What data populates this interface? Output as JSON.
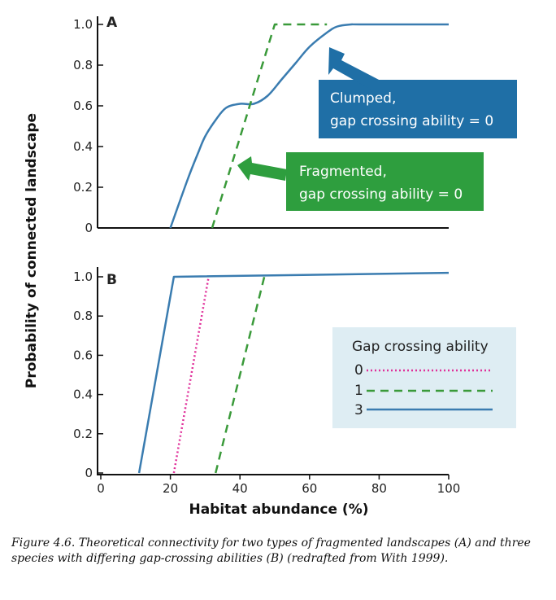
{
  "chart_data": [
    {
      "panel": "A",
      "type": "line",
      "ylabel": "Probability of connected landscape",
      "xlabel": "",
      "xlim": [
        0,
        100
      ],
      "ylim": [
        0,
        1.0
      ],
      "y_ticks": [
        "0",
        "0.2",
        "0.4",
        "0.6",
        "0.8",
        "1.0"
      ],
      "series": [
        {
          "style": "solid",
          "color": "#3a7cb0",
          "x": [
            20,
            25,
            28,
            30,
            33,
            36,
            40,
            44,
            48,
            52,
            56,
            60,
            65,
            68,
            72,
            75,
            100
          ],
          "y": [
            0,
            0.24,
            0.37,
            0.45,
            0.53,
            0.59,
            0.61,
            0.61,
            0.65,
            0.73,
            0.81,
            0.89,
            0.96,
            0.99,
            1.0,
            1.0,
            1.0
          ]
        },
        {
          "style": "dashed",
          "color": "#3a9a3a",
          "x": [
            32,
            50,
            65
          ],
          "y": [
            0,
            1.0,
            1.0
          ]
        }
      ],
      "annotations": [
        {
          "lines": [
            "Clumped,",
            "gap crossing ability = 0"
          ],
          "color": "#1f6fa6",
          "target": [
            66,
            0.88
          ]
        },
        {
          "lines": [
            "Fragmented,",
            "gap crossing ability = 0"
          ],
          "color": "#2e9e3e",
          "target": [
            40,
            0.3
          ]
        }
      ]
    },
    {
      "panel": "B",
      "type": "line",
      "xlabel": "Habitat abundance (%)",
      "xlim": [
        0,
        100
      ],
      "ylim": [
        0,
        1.0
      ],
      "x_ticks": [
        "0",
        "20",
        "40",
        "60",
        "80",
        "100"
      ],
      "y_ticks": [
        "0",
        "0.2",
        "0.4",
        "0.6",
        "0.8",
        "1.0"
      ],
      "legend": {
        "title": "Gap crossing ability",
        "position": "center-right",
        "labels": [
          "0",
          "1",
          "3"
        ]
      },
      "series": [
        {
          "style": "dotted",
          "color": "#e0309a",
          "x": [
            21,
            31
          ],
          "y": [
            0,
            1.0
          ]
        },
        {
          "style": "dashed",
          "color": "#3a9a3a",
          "x": [
            33,
            47
          ],
          "y": [
            0,
            1.0
          ]
        },
        {
          "style": "solid",
          "color": "#3a7cb0",
          "x": [
            11,
            21,
            100
          ],
          "y": [
            0,
            1.0,
            1.02
          ]
        }
      ]
    }
  ],
  "caption": "Figure 4.6. Theoretical connectivity for two types of fragmented landscapes (A) and three species with differing gap-crossing abilities (B) (redrafted from With 1999)."
}
